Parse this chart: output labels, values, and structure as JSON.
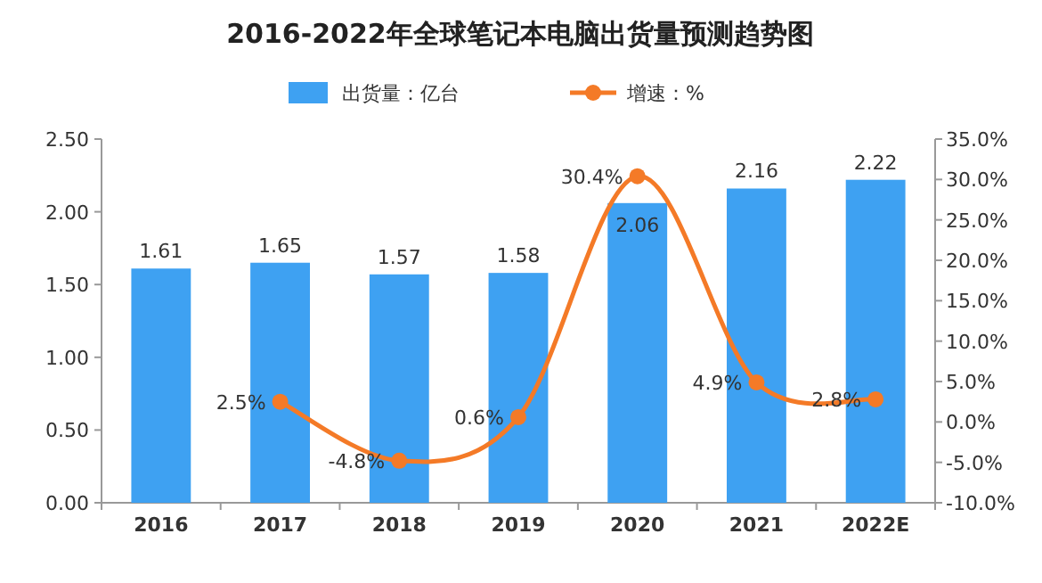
{
  "chart_data": {
    "type": "bar",
    "title": "2016-2022年全球笔记本电脑出货量预测趋势图",
    "categories": [
      "2016",
      "2017",
      "2018",
      "2019",
      "2020",
      "2021",
      "2022E"
    ],
    "series": [
      {
        "name": "出货量：亿台",
        "color": "#3ea1f2",
        "values": [
          1.61,
          1.65,
          1.57,
          1.58,
          2.06,
          2.16,
          2.22
        ],
        "value_labels": [
          "1.61",
          "1.65",
          "1.57",
          "1.58",
          "2.06",
          "2.16",
          "2.22"
        ]
      },
      {
        "name": "增速：%",
        "type": "line",
        "axis": "y2",
        "color": "#f47a27",
        "values": [
          null,
          2.5,
          -4.8,
          0.6,
          30.4,
          4.9,
          2.8
        ],
        "value_labels": [
          null,
          "2.5%",
          "-4.8%",
          "0.6%",
          "30.4%",
          "4.9%",
          "2.8%"
        ]
      }
    ],
    "ylim": [
      0,
      2.5
    ],
    "yticks": [
      {
        "value": 0,
        "label": "0.00"
      },
      {
        "value": 0.5,
        "label": "0.50"
      },
      {
        "value": 1,
        "label": "1.00"
      },
      {
        "value": 1.5,
        "label": "1.50"
      },
      {
        "value": 2,
        "label": "2.00"
      },
      {
        "value": 2.5,
        "label": "2.50"
      }
    ],
    "y2lim": [
      -10,
      35
    ],
    "y2ticks": [
      {
        "value": -10,
        "label": "-10.0%"
      },
      {
        "value": -5,
        "label": "-5.0%"
      },
      {
        "value": 0,
        "label": "0.0%"
      },
      {
        "value": 5,
        "label": "5.0%"
      },
      {
        "value": 10,
        "label": "10.0%"
      },
      {
        "value": 15,
        "label": "15.0%"
      },
      {
        "value": 20,
        "label": "20.0%"
      },
      {
        "value": 25,
        "label": "25.0%"
      },
      {
        "value": 30,
        "label": "30.0%"
      },
      {
        "value": 35,
        "label": "35.0%"
      }
    ],
    "legend": "top",
    "marker": "circle"
  }
}
